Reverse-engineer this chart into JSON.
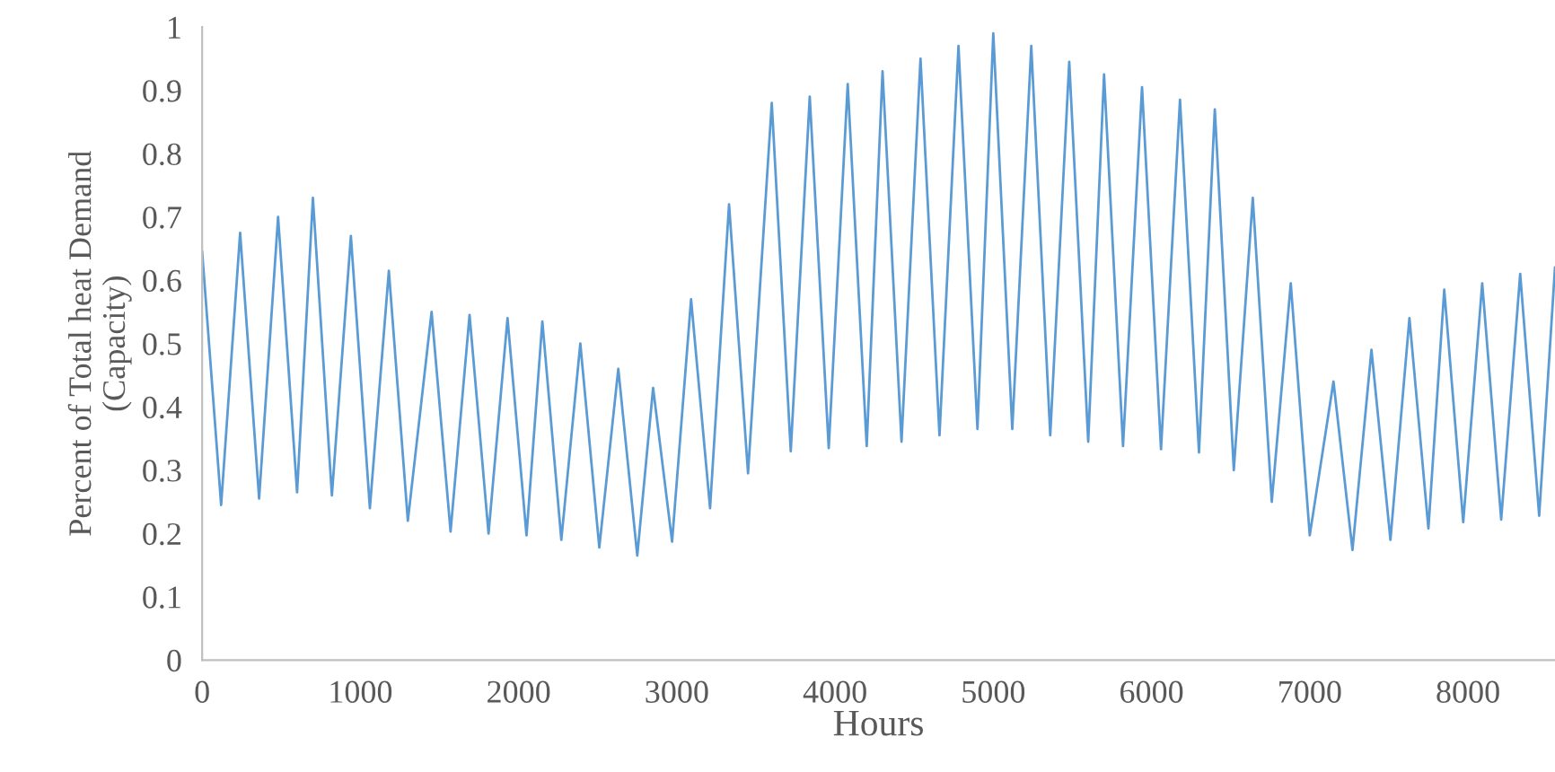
{
  "chart_data": {
    "type": "line",
    "xlabel": "Hours",
    "ylabel": "Percent of Total heat Demand\n(Capacity)",
    "xlim": [
      0,
      8550
    ],
    "xticks": [
      0,
      1000,
      2000,
      3000,
      4000,
      5000,
      6000,
      7000,
      8000
    ],
    "ylim": [
      0,
      1
    ],
    "yticks": [
      0,
      0.1,
      0.2,
      0.3,
      0.4,
      0.5,
      0.6,
      0.7,
      0.8,
      0.9,
      1
    ],
    "grid": false,
    "marker": "none",
    "line_style": "solid",
    "series": [
      {
        "color": "#5b9bd5",
        "x": [
          0,
          120,
          240,
          360,
          480,
          600,
          700,
          820,
          940,
          1060,
          1180,
          1300,
          1450,
          1570,
          1690,
          1810,
          1930,
          2050,
          2150,
          2270,
          2390,
          2510,
          2630,
          2750,
          2850,
          2970,
          3090,
          3210,
          3330,
          3450,
          3600,
          3720,
          3840,
          3960,
          4080,
          4200,
          4300,
          4420,
          4540,
          4660,
          4780,
          4900,
          5000,
          5120,
          5240,
          5360,
          5480,
          5600,
          5700,
          5820,
          5940,
          6060,
          6180,
          6300,
          6400,
          6520,
          6640,
          6760,
          6880,
          7000,
          7150,
          7270,
          7390,
          7510,
          7630,
          7750,
          7850,
          7970,
          8090,
          8210,
          8330,
          8450,
          8550
        ],
        "values": [
          0.645,
          0.245,
          0.675,
          0.255,
          0.7,
          0.265,
          0.73,
          0.26,
          0.67,
          0.24,
          0.615,
          0.22,
          0.55,
          0.203,
          0.545,
          0.2,
          0.54,
          0.197,
          0.535,
          0.19,
          0.5,
          0.178,
          0.46,
          0.165,
          0.43,
          0.187,
          0.57,
          0.24,
          0.72,
          0.295,
          0.88,
          0.33,
          0.89,
          0.335,
          0.91,
          0.338,
          0.93,
          0.345,
          0.95,
          0.355,
          0.97,
          0.365,
          0.99,
          0.365,
          0.97,
          0.355,
          0.945,
          0.345,
          0.925,
          0.338,
          0.905,
          0.333,
          0.885,
          0.328,
          0.87,
          0.3,
          0.73,
          0.25,
          0.595,
          0.197,
          0.44,
          0.174,
          0.49,
          0.19,
          0.54,
          0.208,
          0.585,
          0.218,
          0.595,
          0.222,
          0.61,
          0.228,
          0.62
        ]
      }
    ]
  }
}
